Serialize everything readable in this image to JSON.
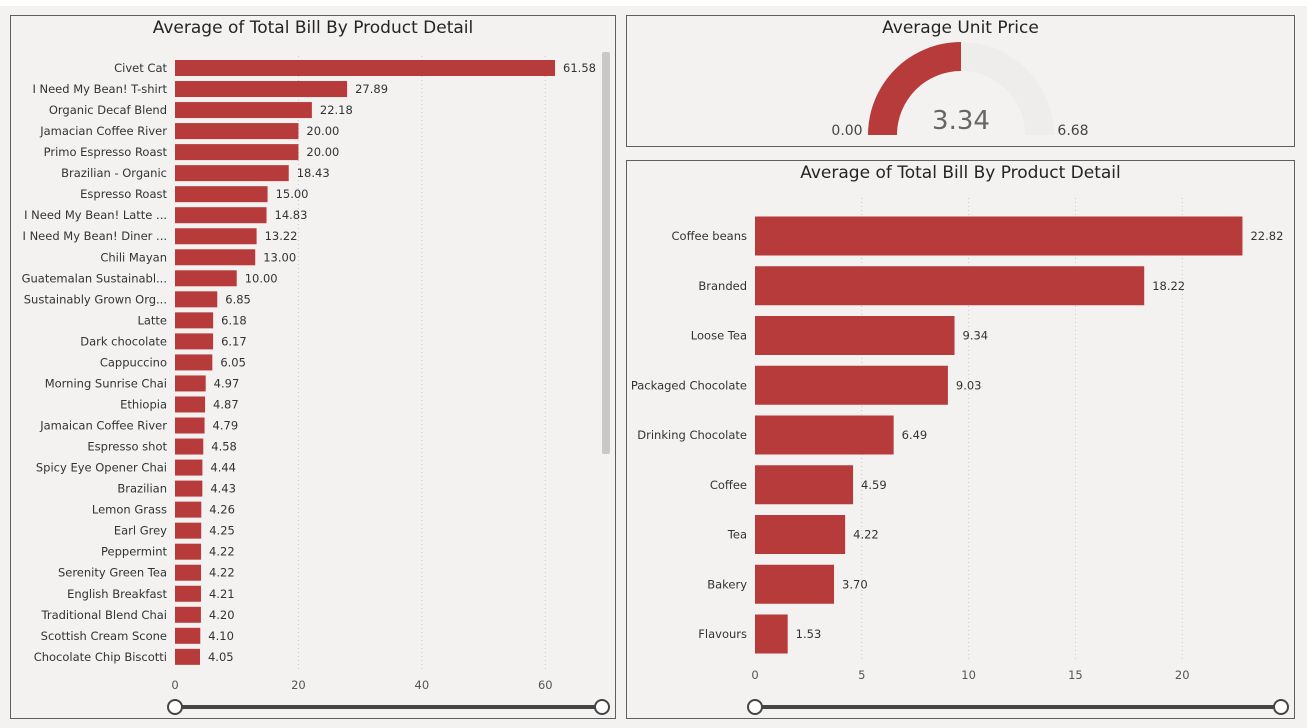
{
  "chart_data": [
    {
      "type": "bar",
      "orientation": "horizontal",
      "title": "Average of Total Bill By Product Detail",
      "categories": [
        "Civet Cat",
        "I Need My Bean! T-shirt",
        "Organic Decaf Blend",
        "Jamacian Coffee River",
        "Primo Espresso Roast",
        "Brazilian - Organic",
        "Espresso Roast",
        "I Need My Bean! Latte ...",
        "I Need My Bean! Diner ...",
        "Chili Mayan",
        "Guatemalan Sustainabl...",
        "Sustainably Grown Org...",
        "Latte",
        "Dark chocolate",
        "Cappuccino",
        "Morning Sunrise Chai",
        "Ethiopia",
        "Jamaican Coffee River",
        "Espresso shot",
        "Spicy Eye Opener Chai",
        "Brazilian",
        "Lemon Grass",
        "Earl Grey",
        "Peppermint",
        "Serenity Green Tea",
        "English Breakfast",
        "Traditional Blend Chai",
        "Scottish Cream Scone",
        "Chocolate Chip Biscotti"
      ],
      "values": [
        61.58,
        27.89,
        22.18,
        20.0,
        20.0,
        18.43,
        15.0,
        14.83,
        13.22,
        13.0,
        10.0,
        6.85,
        6.18,
        6.17,
        6.05,
        4.97,
        4.87,
        4.79,
        4.58,
        4.44,
        4.43,
        4.26,
        4.25,
        4.22,
        4.22,
        4.21,
        4.2,
        4.1,
        4.05
      ],
      "value_labels": [
        "61.58",
        "27.89",
        "22.18",
        "20.00",
        "20.00",
        "18.43",
        "15.00",
        "14.83",
        "13.22",
        "13.00",
        "10.00",
        "6.85",
        "6.18",
        "6.17",
        "6.05",
        "4.97",
        "4.87",
        "4.79",
        "4.58",
        "4.44",
        "4.43",
        "4.26",
        "4.25",
        "4.22",
        "4.22",
        "4.21",
        "4.20",
        "4.10",
        "4.05"
      ],
      "xticks": [
        0,
        20,
        40,
        60
      ],
      "xlim": [
        0,
        70
      ],
      "grid": true,
      "color": "#b83b3b"
    },
    {
      "type": "gauge",
      "title": "Average Unit Price",
      "value": 3.34,
      "min": 0,
      "max": 6.68,
      "value_label": "3.34",
      "min_label": "0.00",
      "max_label": "6.68",
      "color": "#b83b3b",
      "track_color": "#eeedeb"
    },
    {
      "type": "bar",
      "orientation": "horizontal",
      "title": "Average of Total Bill By Product Detail",
      "categories": [
        "Coffee beans",
        "Branded",
        "Loose Tea",
        "Packaged Chocolate",
        "Drinking Chocolate",
        "Coffee",
        "Tea",
        "Bakery",
        "Flavours"
      ],
      "values": [
        22.82,
        18.22,
        9.34,
        9.03,
        6.49,
        4.59,
        4.22,
        3.7,
        1.53
      ],
      "value_labels": [
        "22.82",
        "18.22",
        "9.34",
        "9.03",
        "6.49",
        "4.59",
        "4.22",
        "3.70",
        "1.53"
      ],
      "xticks": [
        0,
        5,
        10,
        15,
        20
      ],
      "xlim": [
        0,
        23.5
      ],
      "grid": true,
      "color": "#b83b3b"
    }
  ]
}
